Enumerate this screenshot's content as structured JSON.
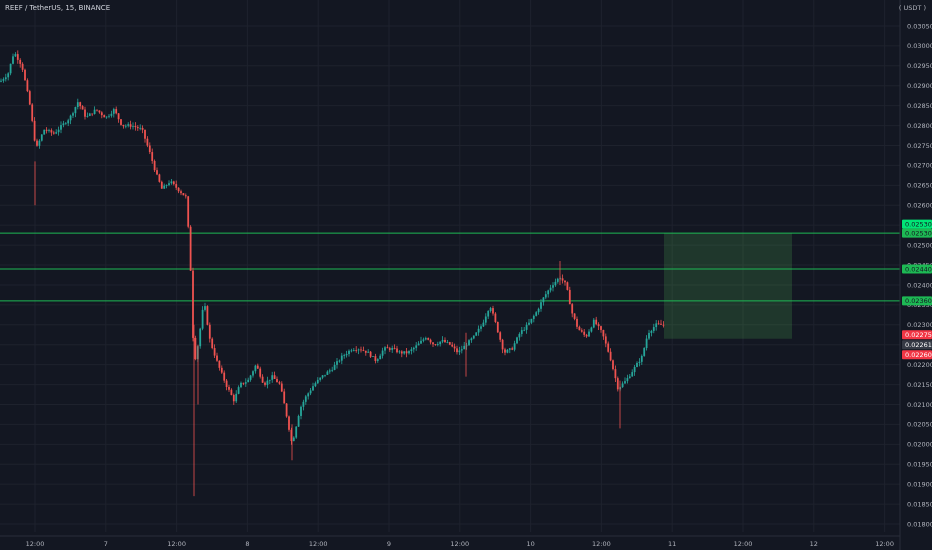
{
  "chart_data": {
    "type": "candlestick",
    "title": "REEF / TetherUS, 15, BINANCE",
    "unit_label": "( USDT )",
    "y_ticks": [
      "0.03050",
      "0.03000",
      "0.02950",
      "0.02900",
      "0.02850",
      "0.02800",
      "0.02750",
      "0.02700",
      "0.02650",
      "0.02600",
      "0.02550",
      "0.02500",
      "0.02450",
      "0.02400",
      "0.02350",
      "0.02300",
      "0.02250",
      "0.02200",
      "0.02150",
      "0.02100",
      "0.02050",
      "0.02000",
      "0.01950",
      "0.01900",
      "0.01850",
      "0.01800"
    ],
    "ylim": [
      0.0178,
      0.0308
    ],
    "x_ticks": [
      "12:00",
      "7",
      "12:00",
      "8",
      "12:00",
      "9",
      "12:00",
      "10",
      "12:00",
      "11",
      "12:00",
      "12",
      "12:00"
    ],
    "price_path": [
      [
        0,
        0.0291
      ],
      [
        8,
        0.0293
      ],
      [
        14,
        0.02985
      ],
      [
        22,
        0.0295
      ],
      [
        30,
        0.0285
      ],
      [
        36,
        0.0274
      ],
      [
        44,
        0.0279
      ],
      [
        54,
        0.0278
      ],
      [
        62,
        0.028
      ],
      [
        70,
        0.0282
      ],
      [
        78,
        0.0286
      ],
      [
        86,
        0.0282
      ],
      [
        96,
        0.0284
      ],
      [
        106,
        0.0282
      ],
      [
        114,
        0.0284
      ],
      [
        122,
        0.028
      ],
      [
        132,
        0.028
      ],
      [
        142,
        0.0279
      ],
      [
        150,
        0.0273
      ],
      [
        156,
        0.0268
      ],
      [
        162,
        0.0264
      ],
      [
        170,
        0.0266
      ],
      [
        178,
        0.0264
      ],
      [
        186,
        0.0262
      ],
      [
        190,
        0.0248
      ],
      [
        194,
        0.022
      ],
      [
        198,
        0.0225
      ],
      [
        204,
        0.0236
      ],
      [
        210,
        0.0226
      ],
      [
        218,
        0.022
      ],
      [
        226,
        0.0215
      ],
      [
        234,
        0.0211
      ],
      [
        240,
        0.0215
      ],
      [
        248,
        0.0216
      ],
      [
        256,
        0.022
      ],
      [
        264,
        0.0215
      ],
      [
        272,
        0.0217
      ],
      [
        280,
        0.0215
      ],
      [
        286,
        0.0208
      ],
      [
        292,
        0.02
      ],
      [
        300,
        0.0209
      ],
      [
        306,
        0.0212
      ],
      [
        314,
        0.0215
      ],
      [
        322,
        0.0217
      ],
      [
        332,
        0.0219
      ],
      [
        342,
        0.0222
      ],
      [
        352,
        0.0224
      ],
      [
        360,
        0.0224
      ],
      [
        368,
        0.0223
      ],
      [
        376,
        0.0221
      ],
      [
        384,
        0.0224
      ],
      [
        392,
        0.0224
      ],
      [
        400,
        0.0223
      ],
      [
        408,
        0.0223
      ],
      [
        418,
        0.0225
      ],
      [
        426,
        0.0227
      ],
      [
        434,
        0.0225
      ],
      [
        442,
        0.0226
      ],
      [
        450,
        0.0225
      ],
      [
        458,
        0.0223
      ],
      [
        466,
        0.0225
      ],
      [
        474,
        0.0227
      ],
      [
        482,
        0.023
      ],
      [
        490,
        0.0235
      ],
      [
        496,
        0.023
      ],
      [
        504,
        0.0223
      ],
      [
        512,
        0.0224
      ],
      [
        520,
        0.0228
      ],
      [
        528,
        0.023
      ],
      [
        536,
        0.0233
      ],
      [
        544,
        0.0237
      ],
      [
        552,
        0.024
      ],
      [
        560,
        0.0242
      ],
      [
        566,
        0.024
      ],
      [
        572,
        0.0233
      ],
      [
        578,
        0.0229
      ],
      [
        586,
        0.0227
      ],
      [
        594,
        0.0231
      ],
      [
        602,
        0.0228
      ],
      [
        610,
        0.0222
      ],
      [
        618,
        0.0214
      ],
      [
        626,
        0.0216
      ],
      [
        634,
        0.0219
      ],
      [
        642,
        0.0222
      ],
      [
        648,
        0.0228
      ],
      [
        656,
        0.023
      ],
      [
        664,
        0.023
      ]
    ],
    "levels": [
      {
        "price": 0.0253,
        "label": "0.02530",
        "color": "#1db954"
      },
      {
        "price": 0.0244,
        "label": "0.02440",
        "color": "#1db954"
      },
      {
        "price": 0.0236,
        "label": "0.02360",
        "color": "#1db954"
      }
    ],
    "top_badge": {
      "label": "0.02530",
      "color": "#00e676"
    },
    "price_badges": [
      {
        "label": "0.02275",
        "color": "#f23645",
        "price": 0.02275
      },
      {
        "label": "0.02261",
        "color": "#363a45",
        "price": 0.02261
      },
      {
        "label": "0.02260",
        "color": "#f23645",
        "price": 0.0226
      }
    ],
    "target_zone": {
      "price_top": 0.0253,
      "price_bottom": 0.02265,
      "color": "#4caf50"
    },
    "colors": {
      "up": "#26a69a",
      "down": "#ef5350",
      "grid": "#1e222d",
      "text": "#b2b5be",
      "background": "#131722"
    }
  }
}
